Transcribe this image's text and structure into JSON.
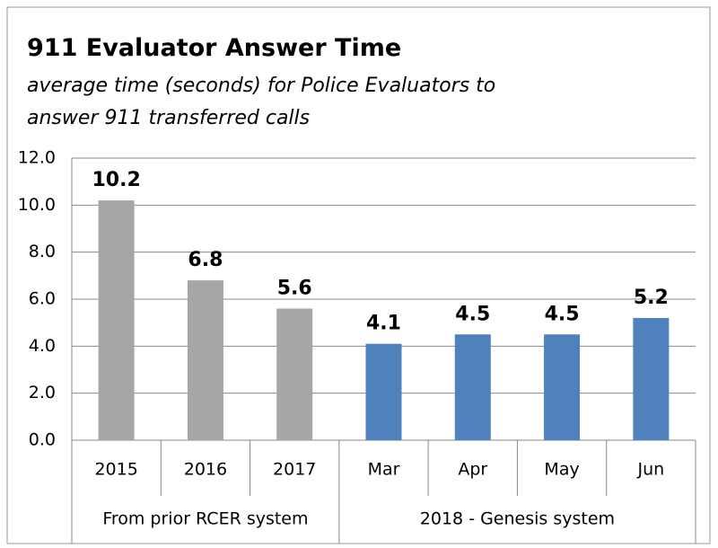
{
  "chart_data": {
    "type": "bar",
    "title": "911 Evaluator Answer Time",
    "subtitle": [
      "average time (seconds) for Police Evaluators to",
      "answer 911 transferred calls"
    ],
    "groups": [
      {
        "label": "From prior RCER system",
        "categories": [
          "2015",
          "2016",
          "2017"
        ],
        "values": [
          10.2,
          6.8,
          5.6
        ],
        "color": "#a6a6a6"
      },
      {
        "label": "2018 - Genesis system",
        "categories": [
          "Mar",
          "Apr",
          "May",
          "Jun"
        ],
        "values": [
          4.1,
          4.5,
          4.5,
          5.2
        ],
        "color": "#4f81bd"
      }
    ],
    "ylim": [
      0,
      12
    ],
    "yticks": [
      {
        "value": 0,
        "label": "0.0"
      },
      {
        "value": 2,
        "label": "2.0"
      },
      {
        "value": 4,
        "label": "4.0"
      },
      {
        "value": 6,
        "label": "6.0"
      },
      {
        "value": 8,
        "label": "8.0"
      },
      {
        "value": 10,
        "label": "10.0"
      },
      {
        "value": 12,
        "label": "12.0"
      }
    ],
    "grid": true
  }
}
